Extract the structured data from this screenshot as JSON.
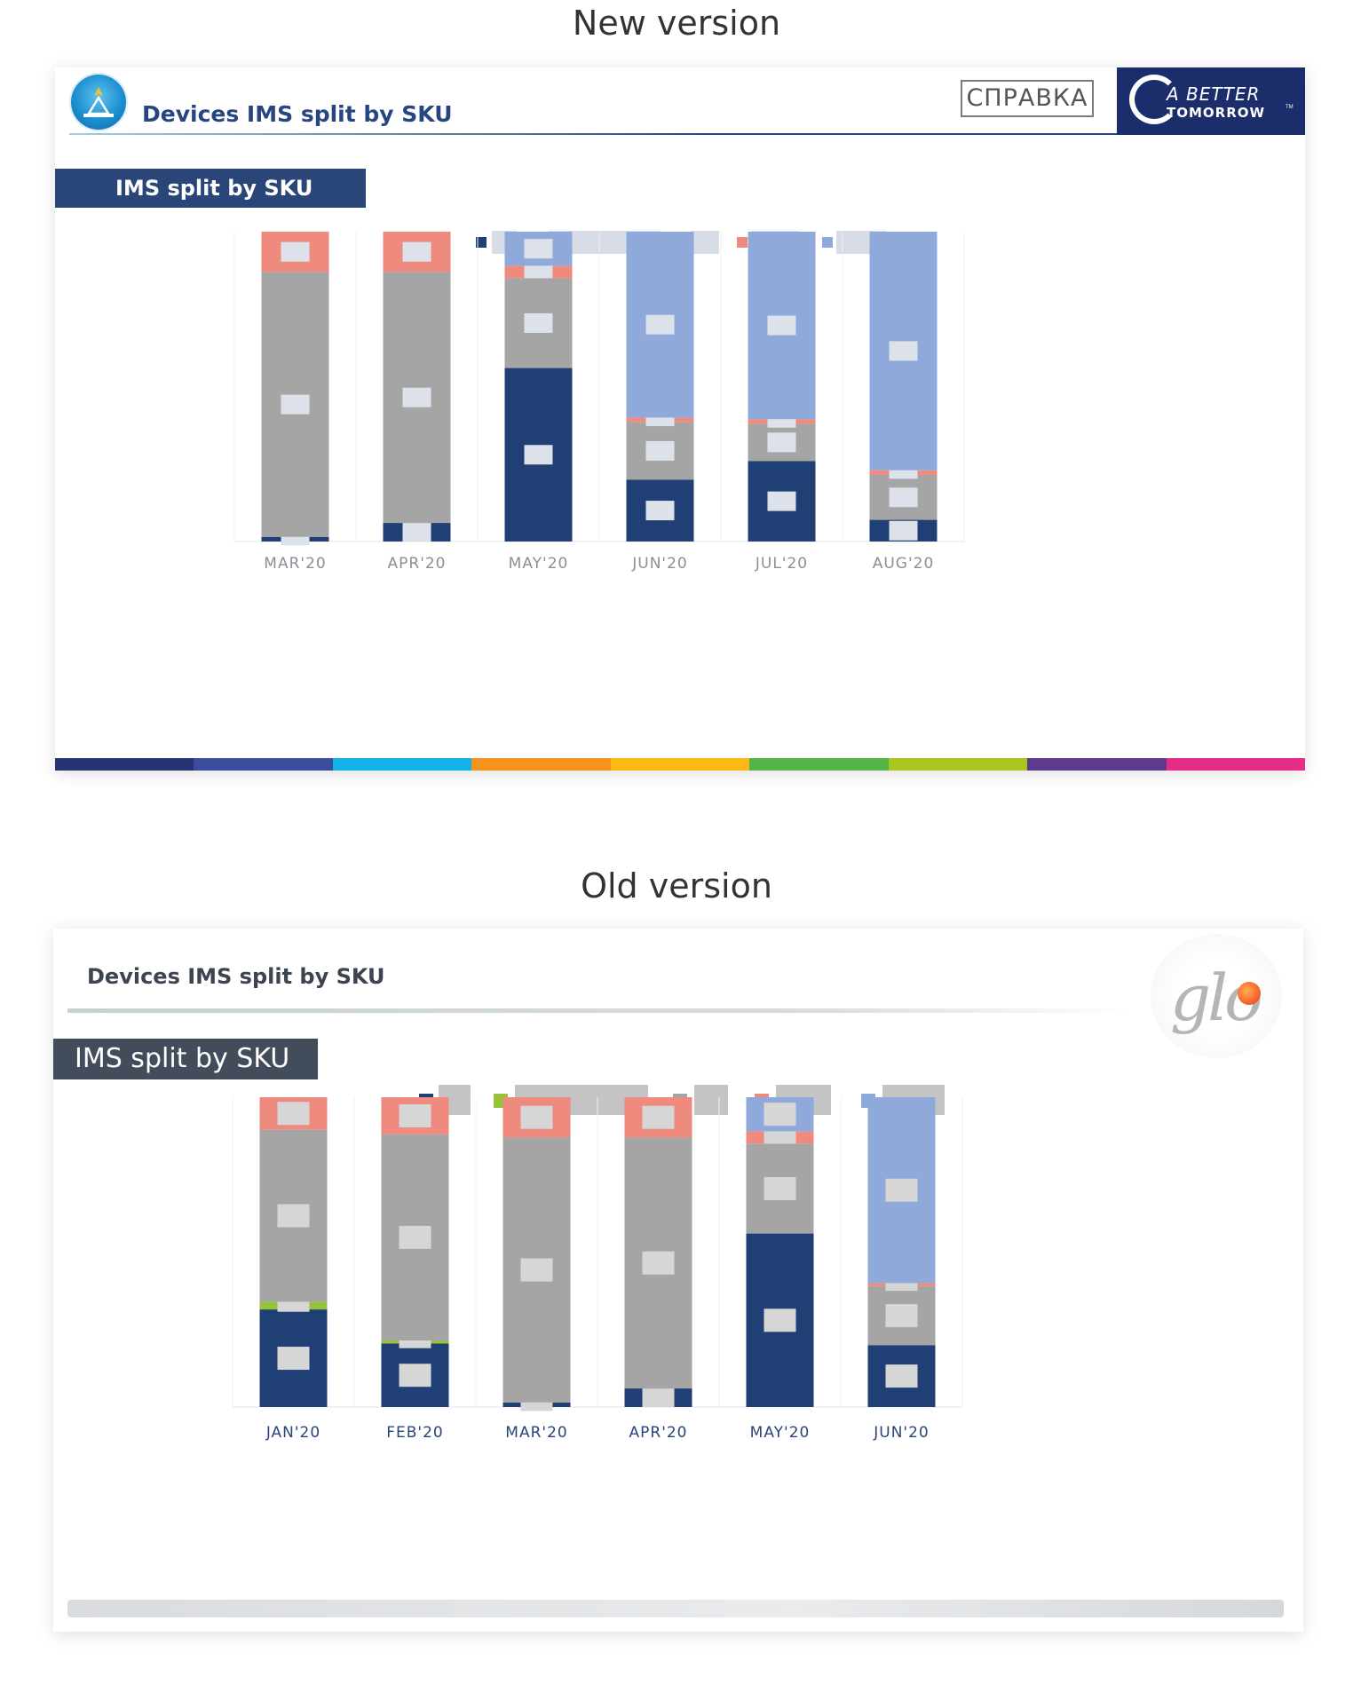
{
  "headings": {
    "new": "New version",
    "old": "Old version"
  },
  "new_slide": {
    "title": "Devices IMS split by SKU",
    "section": "IMS split by SKU",
    "badge": "СПРАВКА",
    "brand_line1": "A BETTER",
    "brand_line2": "TOMORROW",
    "brand_tm": "TM",
    "colors": {
      "accent": "#27467f",
      "strip": [
        "#263473",
        "#3b4d9c",
        "#12b3e8",
        "#f6921e",
        "#fdb913",
        "#55b448",
        "#a9c520",
        "#5e3a8f",
        "#e52d87"
      ]
    }
  },
  "old_slide": {
    "title": "Devices IMS split by SKU",
    "section": "IMS split by SKU",
    "logo_text": "glo"
  },
  "chart_data": [
    {
      "type": "bar",
      "stacked": true,
      "normalized": true,
      "categories": [
        "MAR'20",
        "APR'20",
        "MAY'20",
        "JUN'20",
        "JUL'20",
        "AUG'20"
      ],
      "series": [
        {
          "color": "#203f74",
          "values": [
            1.5,
            6,
            56,
            20,
            26,
            7
          ]
        },
        {
          "color": "#97c23c",
          "values": [
            0,
            0,
            0,
            0,
            0,
            0
          ]
        },
        {
          "color": "#a5a5a5",
          "values": [
            85.5,
            81,
            29,
            18.5,
            12,
            14.5
          ]
        },
        {
          "color": "#ee8a7e",
          "values": [
            13,
            13,
            4,
            1.5,
            1.5,
            1.5
          ]
        },
        {
          "color": "#8fa9db",
          "values": [
            0,
            0,
            11,
            60,
            60.5,
            77
          ]
        }
      ],
      "legend_position": "top",
      "ylim": [
        0,
        100
      ],
      "grid": false,
      "data_labels": "redacted"
    },
    {
      "type": "bar",
      "stacked": true,
      "normalized": true,
      "categories": [
        "JAN'20",
        "FEB'20",
        "MAR'20",
        "APR'20",
        "MAY'20",
        "JUN'20"
      ],
      "series": [
        {
          "color": "#203f74",
          "values": [
            31.5,
            20.5,
            1.5,
            6,
            56,
            20
          ]
        },
        {
          "color": "#97c23c",
          "values": [
            2.5,
            1,
            0,
            0,
            0,
            0
          ]
        },
        {
          "color": "#a5a5a5",
          "values": [
            55.5,
            66.5,
            85.5,
            81,
            29,
            19
          ]
        },
        {
          "color": "#ee8a7e",
          "values": [
            10.5,
            12,
            13,
            13,
            4,
            1
          ]
        },
        {
          "color": "#8fa9db",
          "values": [
            0,
            0,
            0,
            0,
            11,
            60
          ]
        }
      ],
      "legend_position": "top",
      "ylim": [
        0,
        100
      ],
      "grid": false,
      "data_labels": "redacted"
    }
  ]
}
